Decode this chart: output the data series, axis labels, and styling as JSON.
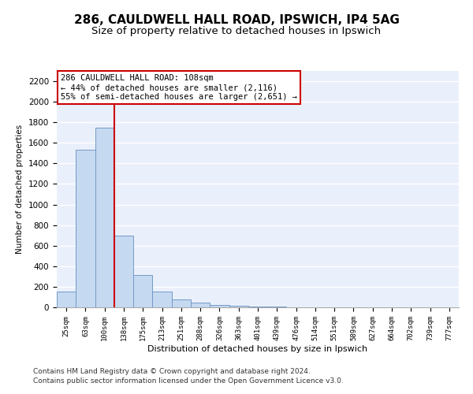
{
  "title1": "286, CAULDWELL HALL ROAD, IPSWICH, IP4 5AG",
  "title2": "Size of property relative to detached houses in Ipswich",
  "xlabel": "Distribution of detached houses by size in Ipswich",
  "ylabel": "Number of detached properties",
  "categories": [
    "25sqm",
    "63sqm",
    "100sqm",
    "138sqm",
    "175sqm",
    "213sqm",
    "251sqm",
    "288sqm",
    "326sqm",
    "363sqm",
    "401sqm",
    "439sqm",
    "476sqm",
    "514sqm",
    "551sqm",
    "589sqm",
    "627sqm",
    "664sqm",
    "702sqm",
    "739sqm",
    "777sqm"
  ],
  "values": [
    150,
    1530,
    1750,
    700,
    315,
    155,
    80,
    45,
    25,
    15,
    10,
    5,
    0,
    0,
    0,
    0,
    0,
    0,
    0,
    0,
    0
  ],
  "bar_color": "#c5d9f1",
  "bar_edge_color": "#7399c6",
  "vline_color": "#cc0000",
  "annotation_text": "286 CAULDWELL HALL ROAD: 108sqm\n← 44% of detached houses are smaller (2,116)\n55% of semi-detached houses are larger (2,651) →",
  "annotation_box_color": "#cc0000",
  "ylim": [
    0,
    2300
  ],
  "yticks": [
    0,
    200,
    400,
    600,
    800,
    1000,
    1200,
    1400,
    1600,
    1800,
    2000,
    2200
  ],
  "bg_color": "#eaf0fb",
  "grid_color": "#ffffff",
  "footer1": "Contains HM Land Registry data © Crown copyright and database right 2024.",
  "footer2": "Contains public sector information licensed under the Open Government Licence v3.0.",
  "title1_fontsize": 11,
  "title2_fontsize": 9.5,
  "annotation_fontsize": 7.5,
  "footer_fontsize": 6.5
}
